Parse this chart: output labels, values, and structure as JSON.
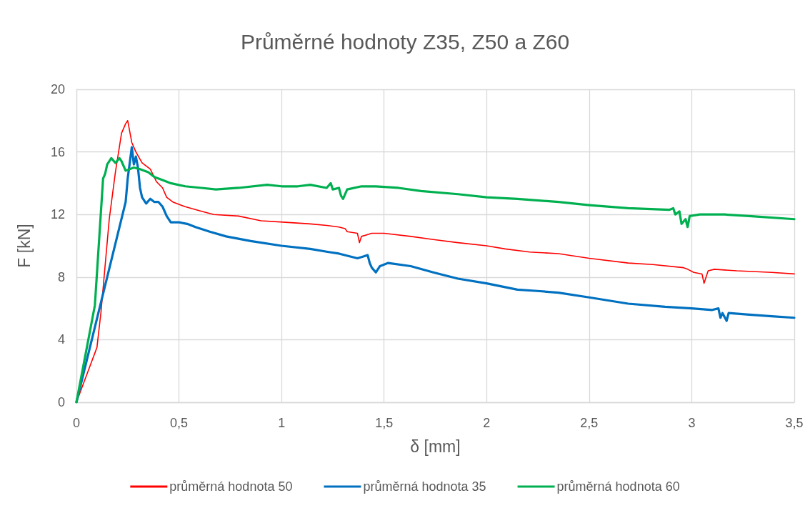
{
  "chart_data": {
    "type": "line",
    "title": "Průměrné hodnoty Z35, Z50 a Z60",
    "xlabel": "δ [mm]",
    "ylabel": "F [kN]",
    "xlim": [
      0,
      3.5
    ],
    "xticks": [
      0,
      {
        "value": 0.5,
        "label": "0,5"
      },
      1,
      {
        "value": 1.5,
        "label": "1,5"
      },
      2,
      {
        "value": 2.5,
        "label": "2,5"
      },
      3,
      {
        "value": 3.5,
        "label": "3,5"
      }
    ],
    "ylim": [
      0,
      20
    ],
    "yticks": [
      0,
      4,
      8,
      12,
      16,
      20
    ],
    "grid": true,
    "legend": "bottom",
    "marker": "none",
    "line_style": "solid",
    "series": [
      {
        "name": "průměrná hodnota 50",
        "color": "#ff0000",
        "x": [
          0,
          0.1,
          0.12,
          0.16,
          0.19,
          0.22,
          0.24,
          0.25,
          0.27,
          0.29,
          0.32,
          0.36,
          0.39,
          0.42,
          0.44,
          0.47,
          0.53,
          0.61,
          0.67,
          0.79,
          0.9,
          1.02,
          1.14,
          1.22,
          1.28,
          1.31,
          1.32,
          1.37,
          1.38,
          1.39,
          1.44,
          1.5,
          1.63,
          1.74,
          1.86,
          2.0,
          2.09,
          2.21,
          2.35,
          2.5,
          2.69,
          2.81,
          2.96,
          2.98,
          3.01,
          3.05,
          3.06,
          3.08,
          3.11,
          3.22,
          3.39,
          3.5
        ],
        "values": [
          0,
          3.5,
          5.8,
          11.7,
          14.7,
          17.2,
          17.8,
          18.0,
          16.6,
          16.0,
          15.3,
          14.9,
          14.1,
          13.7,
          13.1,
          12.8,
          12.5,
          12.2,
          12.0,
          11.9,
          11.6,
          11.5,
          11.4,
          11.3,
          11.2,
          11.1,
          10.9,
          10.8,
          10.2,
          10.6,
          10.8,
          10.8,
          10.6,
          10.4,
          10.2,
          10.0,
          9.8,
          9.6,
          9.5,
          9.2,
          8.9,
          8.8,
          8.6,
          8.5,
          8.3,
          8.2,
          7.6,
          8.4,
          8.5,
          8.4,
          8.3,
          8.2
        ]
      },
      {
        "name": "průměrná hodnota 35",
        "color": "#0070c0",
        "x": [
          0,
          0.24,
          0.25,
          0.27,
          0.28,
          0.29,
          0.3,
          0.31,
          0.32,
          0.34,
          0.36,
          0.38,
          0.4,
          0.42,
          0.44,
          0.46,
          0.5,
          0.54,
          0.58,
          0.65,
          0.73,
          0.85,
          1.0,
          1.14,
          1.23,
          1.28,
          1.37,
          1.42,
          1.43,
          1.44,
          1.46,
          1.48,
          1.52,
          1.63,
          1.74,
          1.86,
          2.0,
          2.15,
          2.26,
          2.35,
          2.5,
          2.69,
          2.87,
          3.0,
          3.1,
          3.13,
          3.14,
          3.15,
          3.17,
          3.18,
          3.28,
          3.39,
          3.5
        ],
        "values": [
          0,
          12.8,
          14.3,
          16.3,
          15.2,
          15.7,
          15.0,
          13.7,
          13.1,
          12.7,
          13.0,
          12.8,
          12.8,
          12.5,
          11.9,
          11.5,
          11.5,
          11.4,
          11.2,
          10.9,
          10.6,
          10.3,
          10.0,
          9.8,
          9.6,
          9.5,
          9.2,
          9.4,
          8.9,
          8.6,
          8.3,
          8.7,
          8.9,
          8.7,
          8.3,
          7.9,
          7.6,
          7.2,
          7.1,
          7.0,
          6.7,
          6.3,
          6.1,
          6.0,
          5.9,
          6.0,
          5.4,
          5.7,
          5.2,
          5.7,
          5.6,
          5.5,
          5.4
        ]
      },
      {
        "name": "průměrná hodnota 60",
        "color": "#00b050",
        "x": [
          0,
          0.09,
          0.13,
          0.14,
          0.15,
          0.17,
          0.19,
          0.21,
          0.22,
          0.24,
          0.28,
          0.31,
          0.35,
          0.38,
          0.42,
          0.46,
          0.53,
          0.61,
          0.68,
          0.79,
          0.93,
          1.0,
          1.08,
          1.14,
          1.22,
          1.24,
          1.25,
          1.28,
          1.29,
          1.3,
          1.32,
          1.39,
          1.46,
          1.57,
          1.68,
          1.86,
          2.0,
          2.15,
          2.35,
          2.5,
          2.69,
          2.89,
          2.91,
          2.92,
          2.94,
          2.95,
          2.97,
          2.98,
          2.99,
          3.04,
          3.16,
          3.28,
          3.5
        ],
        "values": [
          0,
          6.2,
          14.3,
          14.6,
          15.2,
          15.6,
          15.3,
          15.6,
          15.4,
          14.8,
          15.0,
          14.9,
          14.7,
          14.4,
          14.2,
          14.0,
          13.8,
          13.7,
          13.6,
          13.7,
          13.9,
          13.8,
          13.8,
          13.9,
          13.7,
          14.0,
          13.6,
          13.7,
          13.2,
          13.0,
          13.6,
          13.8,
          13.8,
          13.7,
          13.5,
          13.3,
          13.1,
          13.0,
          12.8,
          12.6,
          12.4,
          12.3,
          12.4,
          12.0,
          12.2,
          11.4,
          11.7,
          11.2,
          11.9,
          12.0,
          12.0,
          11.9,
          11.7
        ]
      }
    ]
  }
}
